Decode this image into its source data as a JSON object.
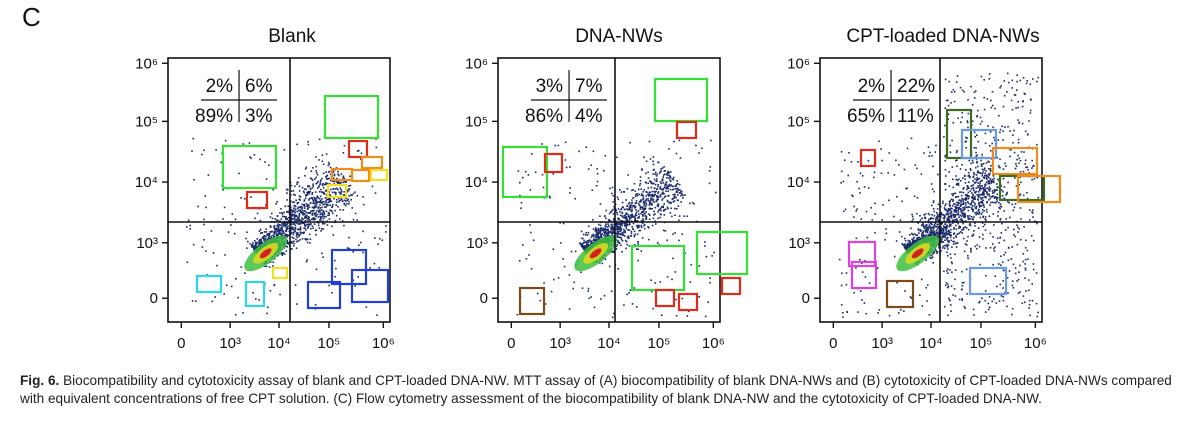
{
  "figure": {
    "label": "C",
    "caption_label": "Fig. 6.",
    "caption_text": "Biocompatibility and cytotoxicity assay of blank and CPT-loaded DNA-NW. MTT assay of (A) biocompatibility of blank DNA-NWs and (B) cytotoxicity of CPT-loaded DNA-NWs compared with equivalent concentrations of free CPT solution. (C) Flow cytometry assessment of the biocompatibility of blank DNA-NW and the cytotoxicity of CPT-loaded DNA-NW."
  },
  "chart_data": [
    {
      "type": "scatter",
      "title": "Blank",
      "x_tick_labels": [
        "0",
        "10³",
        "10⁴",
        "10⁵",
        "10⁶"
      ],
      "y_tick_labels": [
        "0",
        "10³",
        "10⁴",
        "10⁵",
        "10⁶"
      ],
      "quadrant_percent": {
        "upper_left": "2%",
        "upper_right": "6%",
        "lower_left": "89%",
        "lower_right": "3%"
      }
    },
    {
      "type": "scatter",
      "title": "DNA-NWs",
      "x_tick_labels": [
        "0",
        "10³",
        "10⁴",
        "10⁵",
        "10⁶"
      ],
      "y_tick_labels": [
        "0",
        "10³",
        "10⁴",
        "10⁵",
        "10⁶"
      ],
      "quadrant_percent": {
        "upper_left": "3%",
        "upper_right": "7%",
        "lower_left": "86%",
        "lower_right": "4%"
      }
    },
    {
      "type": "scatter",
      "title": "CPT-loaded DNA-NWs",
      "x_tick_labels": [
        "0",
        "10³",
        "10⁴",
        "10⁵",
        "10⁶"
      ],
      "y_tick_labels": [
        "0",
        "10³",
        "10⁴",
        "10⁵",
        "10⁶"
      ],
      "quadrant_percent": {
        "upper_left": "2%",
        "upper_right": "22%",
        "lower_left": "65%",
        "lower_right": "11%"
      }
    }
  ],
  "colors": {
    "dots": "#1a2a6c",
    "core_green": "#3fbf3f",
    "core_yellow": "#d8d820",
    "core_red": "#d42020",
    "box_green": "#35e035",
    "box_red": "#e02a1a",
    "box_orange": "#f08c1a",
    "box_yellow": "#f0e020",
    "box_blue": "#1f3fd6",
    "box_cyan": "#2ad8e8",
    "box_brown": "#7a4a1a",
    "box_darkgreen": "#3d6b22",
    "box_lightblue": "#6a9ae8",
    "box_magenta": "#e040e0"
  }
}
